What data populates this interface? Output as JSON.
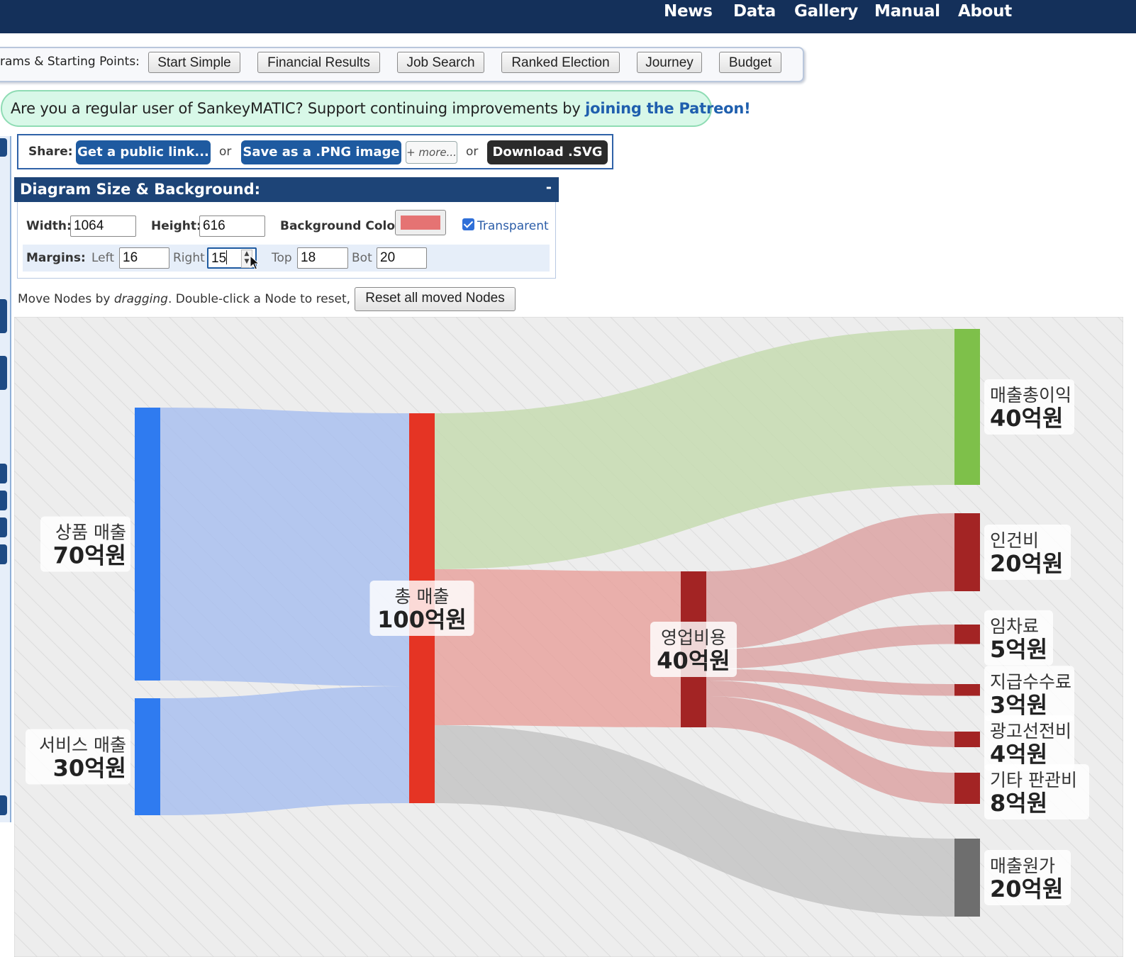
{
  "nav": [
    "News",
    "Data",
    "Gallery",
    "Manual",
    "About"
  ],
  "examples": {
    "label": "rams & Starting Points:",
    "buttons": [
      "Start Simple",
      "Financial Results",
      "Job Search",
      "Ranked Election",
      "Journey",
      "Budget"
    ]
  },
  "patreon": {
    "text": "Are you a regular user of SankeyMATIC? Support continuing improvements by ",
    "link": "joining the Patreon!"
  },
  "share": {
    "label": "Share:",
    "public_link": "Get a public link...",
    "or": "or",
    "png": "Save as a .PNG image",
    "more": "+ more...",
    "svg": "Download .SVG"
  },
  "size_panel": {
    "title": "Diagram Size & Background:",
    "collapse": "-",
    "width_label": "Width:",
    "width": "1064",
    "height_label": "Height:",
    "height": "616",
    "bg_label": "Background Color:",
    "bg_color": "#e57373",
    "transparent_label": "Transparent",
    "transparent_checked": true,
    "margins_label": "Margins:",
    "left_label": "Left",
    "left": "16",
    "right_label": "Right",
    "right": "15",
    "top_label": "Top",
    "top": "18",
    "bot_label": "Bot",
    "bot": "20"
  },
  "move": {
    "text_a": "Move Nodes by ",
    "text_em": "dragging",
    "text_b": ". Double-click a Node to reset, or:",
    "reset": "Reset all moved Nodes"
  },
  "sankey": {
    "nodes": [
      {
        "id": "product",
        "name": "상품 매출",
        "value_label": "70억원",
        "value": 70,
        "color": "#2f7bf0"
      },
      {
        "id": "service",
        "name": "서비스 매출",
        "value_label": "30억원",
        "value": 30,
        "color": "#2f7bf0"
      },
      {
        "id": "total",
        "name": "총 매출",
        "value_label": "100억원",
        "value": 100,
        "color": "#e53424"
      },
      {
        "id": "gross",
        "name": "매출총이익",
        "value_label": "40억원",
        "value": 40,
        "color": "#7ec04a"
      },
      {
        "id": "opex",
        "name": "영업비용",
        "value_label": "40억원",
        "value": 40,
        "color": "#a32424"
      },
      {
        "id": "labor",
        "name": "인건비",
        "value_label": "20억원",
        "value": 20,
        "color": "#a32424"
      },
      {
        "id": "rent",
        "name": "임차료",
        "value_label": "5억원",
        "value": 5,
        "color": "#a32424"
      },
      {
        "id": "fees",
        "name": "지급수수료",
        "value_label": "3억원",
        "value": 3,
        "color": "#a32424"
      },
      {
        "id": "ads",
        "name": "광고선전비",
        "value_label": "4억원",
        "value": 4,
        "color": "#a32424"
      },
      {
        "id": "other",
        "name": "기타 판관비",
        "value_label": "8억원",
        "value": 8,
        "color": "#a32424"
      },
      {
        "id": "cogs",
        "name": "매출원가",
        "value_label": "20억원",
        "value": 20,
        "color": "#6e6e6e"
      }
    ],
    "links": [
      {
        "source": "product",
        "target": "total",
        "value": 70,
        "color": "#a9c0ef"
      },
      {
        "source": "service",
        "target": "total",
        "value": 30,
        "color": "#a9c0ef"
      },
      {
        "source": "total",
        "target": "gross",
        "value": 40,
        "color": "#c5dab0"
      },
      {
        "source": "total",
        "target": "opex",
        "value": 40,
        "color": "#e8a39f"
      },
      {
        "source": "total",
        "target": "cogs",
        "value": 20,
        "color": "#c4c4c4"
      },
      {
        "source": "opex",
        "target": "labor",
        "value": 20,
        "color": "#dca3a3"
      },
      {
        "source": "opex",
        "target": "rent",
        "value": 5,
        "color": "#dca3a3"
      },
      {
        "source": "opex",
        "target": "fees",
        "value": 3,
        "color": "#dca3a3"
      },
      {
        "source": "opex",
        "target": "ads",
        "value": 4,
        "color": "#dca3a3"
      },
      {
        "source": "opex",
        "target": "other",
        "value": 8,
        "color": "#dca3a3"
      }
    ]
  }
}
